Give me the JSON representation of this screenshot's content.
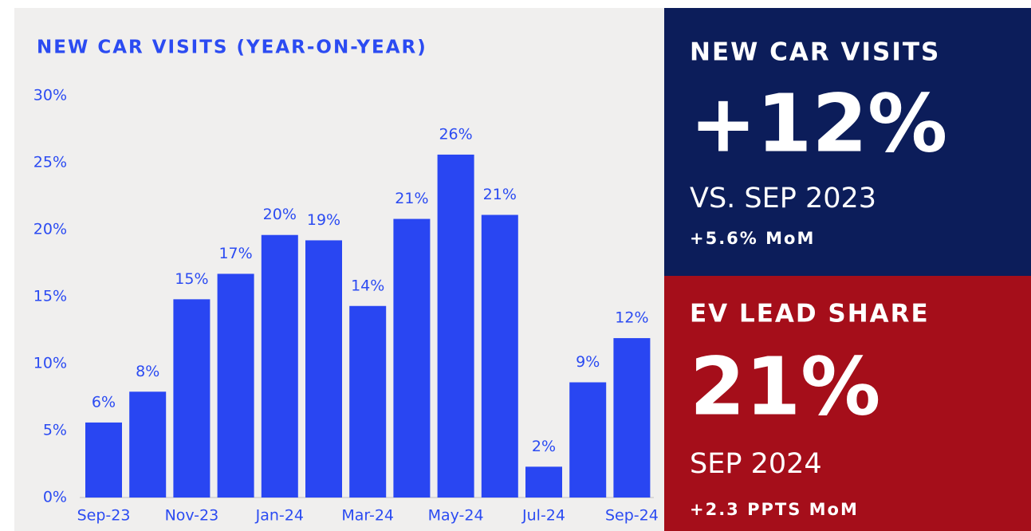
{
  "chart_data": {
    "type": "bar",
    "title": "NEW CAR VISITS (YEAR-ON-YEAR)",
    "categories": [
      "Sep-23",
      null,
      "Nov-23",
      null,
      "Jan-24",
      null,
      "Mar-24",
      null,
      "May-24",
      null,
      "Jul-24",
      null,
      "Sep-24"
    ],
    "values": [
      5.6,
      7.9,
      14.8,
      16.7,
      19.6,
      19.2,
      14.3,
      20.8,
      25.6,
      21.1,
      2.3,
      8.6,
      11.9
    ],
    "value_labels": [
      "6%",
      "8%",
      "15%",
      "17%",
      "20%",
      "19%",
      "14%",
      "21%",
      "26%",
      "21%",
      "2%",
      "9%",
      "12%"
    ],
    "color": "#2946f2",
    "ylim": [
      0,
      30
    ],
    "yticks": [
      {
        "value": 0,
        "label": "0%"
      },
      {
        "value": 5,
        "label": "5%"
      },
      {
        "value": 10,
        "label": "10%"
      },
      {
        "value": 15,
        "label": "15%"
      },
      {
        "value": 20,
        "label": "20%"
      },
      {
        "value": 25,
        "label": "25%"
      },
      {
        "value": 30,
        "label": "30%"
      }
    ],
    "grid": false
  },
  "panels": [
    {
      "title": "NEW CAR VISITS",
      "value": "+12%",
      "subtitle": "VS. SEP 2023",
      "note": "+5.6% MoM"
    },
    {
      "title": "EV LEAD SHARE",
      "value": "21%",
      "subtitle": "SEP 2024",
      "note": "+2.3 PPTS MoM"
    }
  ]
}
